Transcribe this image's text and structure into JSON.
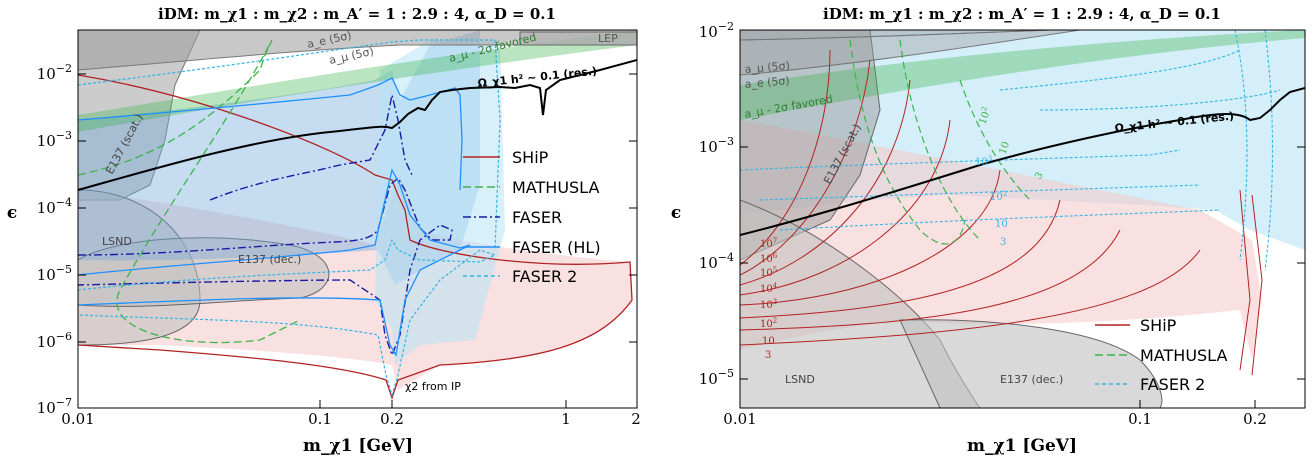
{
  "chart_data": [
    {
      "type": "line",
      "title": "iDM:  m_χ1 : m_χ2 : m_A′ = 1 : 2.9 : 4,  α_D = 0.1",
      "xlabel": "m_χ1 [GeV]",
      "ylabel": "ϵ",
      "x_scale": "log",
      "y_scale": "log",
      "xlim": [
        0.01,
        2
      ],
      "ylim": [
        1e-07,
        0.05
      ],
      "x_ticks": [
        "0.01",
        "0.1",
        "0.2",
        "1",
        "2"
      ],
      "y_ticks": [
        "10^-7",
        "10^-6",
        "10^-5",
        "10^-4",
        "10^-3",
        "10^-2"
      ],
      "legend_position": "center-right",
      "legend": [
        {
          "label": "SHiP",
          "color": "#b22222",
          "style": "solid"
        },
        {
          "label": "MATHUSLA",
          "color": "#3cb44b",
          "style": "dashed"
        },
        {
          "label": "FASER",
          "color": "#1a1aa6",
          "style": "dashdot"
        },
        {
          "label": "FASER (HL)",
          "color": "#1e90ff",
          "style": "solid"
        },
        {
          "label": "FASER 2",
          "color": "#33b5e5",
          "style": "dotted"
        }
      ],
      "annotations": [
        {
          "text": "a_e (5σ)"
        },
        {
          "text": "a_μ (5σ)"
        },
        {
          "text": "a_μ - 2σ favored"
        },
        {
          "text": "LEP"
        },
        {
          "text": "Ω_χ1 h² ∼ 0.1 (res.)"
        },
        {
          "text": "E137 (scat.)"
        },
        {
          "text": "LSND"
        },
        {
          "text": "E137 (dec.)"
        },
        {
          "text": "χ2 from IP"
        }
      ],
      "series": [
        {
          "name": "SHiP",
          "color": "#b22222",
          "x": [
            0.01,
            0.03,
            0.1,
            0.18,
            0.19,
            0.21,
            0.4,
            1.0,
            1.8,
            2.0,
            1.8,
            1.0,
            0.4,
            0.21,
            0.19,
            0.18,
            0.1,
            0.03,
            0.01
          ],
          "y": [
            0.018,
            0.01,
            0.0035,
            0.0008,
            0.0003,
            0.0006,
            8e-05,
            2.5e-05,
            1.5e-05,
            4e-06,
            1.5e-06,
            1e-06,
            7e-07,
            4e-07,
            1.5e-07,
            4e-07,
            7e-07,
            8.5e-07,
            1e-06
          ]
        },
        {
          "name": "MATHUSLA",
          "color": "#3cb44b",
          "x": [
            0.01,
            0.03,
            0.06,
            0.1,
            0.19,
            0.2,
            0.1,
            0.06,
            0.03,
            0.01
          ],
          "y": [
            0.008,
            0.03,
            0.012,
            0.0008,
            0.0003,
            0.00025,
            0.00025,
            2e-05,
            3e-06,
            1.5e-06
          ]
        },
        {
          "name": "FASER",
          "color": "#1a1aa6",
          "x": [
            0.1,
            0.15,
            0.19,
            0.22,
            0.25,
            0.22,
            0.19,
            0.15,
            0.1
          ],
          "y": [
            0.008,
            0.006,
            0.002,
            0.005,
            0.006,
            1e-05,
            3e-06,
            1e-05,
            1e-05
          ]
        },
        {
          "name": "FASER (HL)",
          "color": "#1e90ff",
          "x": [
            0.01,
            0.05,
            0.1,
            0.19,
            0.25,
            0.3,
            0.25,
            0.19,
            0.1,
            0.05,
            0.01
          ],
          "y": [
            0.012,
            0.011,
            0.01,
            0.0035,
            0.006,
            0.0001,
            1e-05,
            2.5e-06,
            3.5e-06,
            4e-06,
            4.5e-06
          ]
        },
        {
          "name": "FASER 2",
          "color": "#33b5e5",
          "x": [
            0.01,
            0.05,
            0.1,
            0.19,
            0.3,
            0.35,
            0.3,
            0.19,
            0.1,
            0.05,
            0.01
          ],
          "y": [
            0.03,
            0.02,
            0.015,
            0.004,
            0.008,
            0.0003,
            5e-06,
            1.2e-06,
            1.5e-06,
            2e-06,
            2.5e-06
          ]
        },
        {
          "name": "Ω_χ1 h² ∼ 0.1 (res.)",
          "color": "#000000",
          "x": [
            0.01,
            0.02,
            0.05,
            0.1,
            0.15,
            0.19,
            0.25,
            0.3,
            0.4,
            0.6,
            0.75,
            0.8,
            0.85,
            1.0,
            1.5,
            2.0
          ],
          "y": [
            0.00018,
            0.0004,
            0.001,
            0.0016,
            0.0018,
            0.0015,
            0.0035,
            0.005,
            0.006,
            0.009,
            0.01,
            0.0025,
            0.01,
            0.015,
            0.025,
            0.035
          ]
        }
      ]
    },
    {
      "type": "line",
      "title": "iDM:  m_χ1 : m_χ2 : m_A′ = 1 : 2.9 : 4,  α_D = 0.1",
      "xlabel": "m_χ1 [GeV]",
      "ylabel": "ϵ",
      "x_scale": "log",
      "y_scale": "log",
      "xlim": [
        0.01,
        0.25
      ],
      "ylim": [
        7e-06,
        0.01
      ],
      "x_ticks": [
        "0.01",
        "0.1",
        "0.2"
      ],
      "y_ticks": [
        "10^-5",
        "10^-4",
        "10^-3",
        "10^-2"
      ],
      "legend_position": "bottom-right",
      "legend": [
        {
          "label": "SHiP",
          "color": "#b22222",
          "style": "solid"
        },
        {
          "label": "MATHUSLA",
          "color": "#3cb44b",
          "style": "dashed"
        },
        {
          "label": "FASER 2",
          "color": "#33b5e5",
          "style": "dotted"
        }
      ],
      "annotations": [
        {
          "text": "a_μ (5σ)"
        },
        {
          "text": "a_e (5σ)"
        },
        {
          "text": "a_μ - 2σ favored"
        },
        {
          "text": "Ω_χ1 h² ∼ 0.1 (res.)"
        },
        {
          "text": "E137 (scat.)"
        },
        {
          "text": "LSND"
        },
        {
          "text": "E137 (dec.)"
        }
      ],
      "contour_labels": {
        "SHiP": [
          "10^7",
          "10^6",
          "10^5",
          "10^4",
          "10^3",
          "10^2",
          "10",
          "3"
        ],
        "MATHUSLA": [
          "10^2",
          "10",
          "3"
        ],
        "FASER 2": [
          "10^3",
          "10^2",
          "10",
          "3"
        ]
      },
      "series": [
        {
          "name": "Ω_χ1 h² ∼ 0.1 (res.)",
          "color": "#000000",
          "x": [
            0.01,
            0.02,
            0.05,
            0.1,
            0.15,
            0.19,
            0.21,
            0.25
          ],
          "y": [
            0.00019,
            0.0003,
            0.0008,
            0.0017,
            0.002,
            0.0017,
            0.002,
            0.0025
          ]
        }
      ]
    }
  ]
}
